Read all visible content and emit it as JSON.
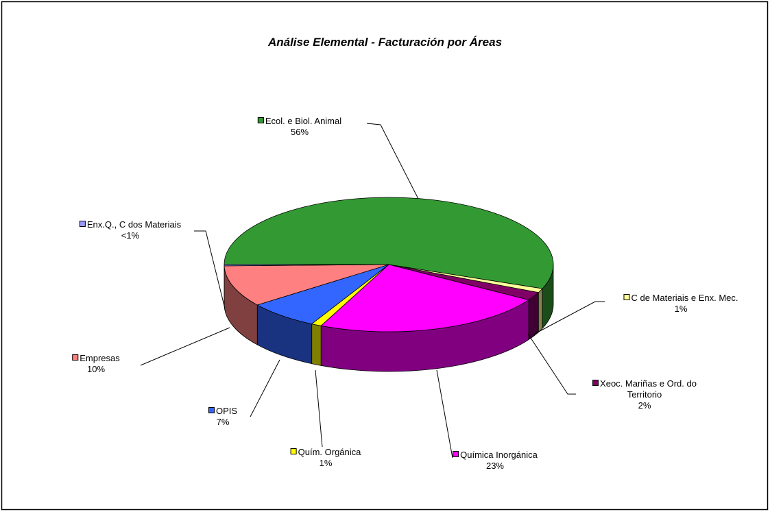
{
  "chart_data": {
    "type": "pie",
    "title": "Análise Elemental - Facturación por Áreas",
    "categories": [
      "Ecol. e Biol. Animal",
      "C de Materiais e Enx. Mec.",
      "Xeoc. Mariñas e Ord. do Territorio",
      "Química Inorgánica",
      "Quím. Orgánica",
      "OPIS",
      "Empresas",
      "Enx.Q., C dos Materiais"
    ],
    "values": [
      56,
      1,
      2,
      23,
      1,
      7,
      10,
      0.3
    ],
    "value_labels": [
      "56%",
      "1%",
      "2%",
      "23%",
      "1%",
      "7%",
      "10%",
      "<1%"
    ],
    "colors": [
      "#339933",
      "#ffff99",
      "#800066",
      "#ff00ff",
      "#ffff00",
      "#3366ff",
      "#ff8080",
      "#9999ff"
    ]
  }
}
